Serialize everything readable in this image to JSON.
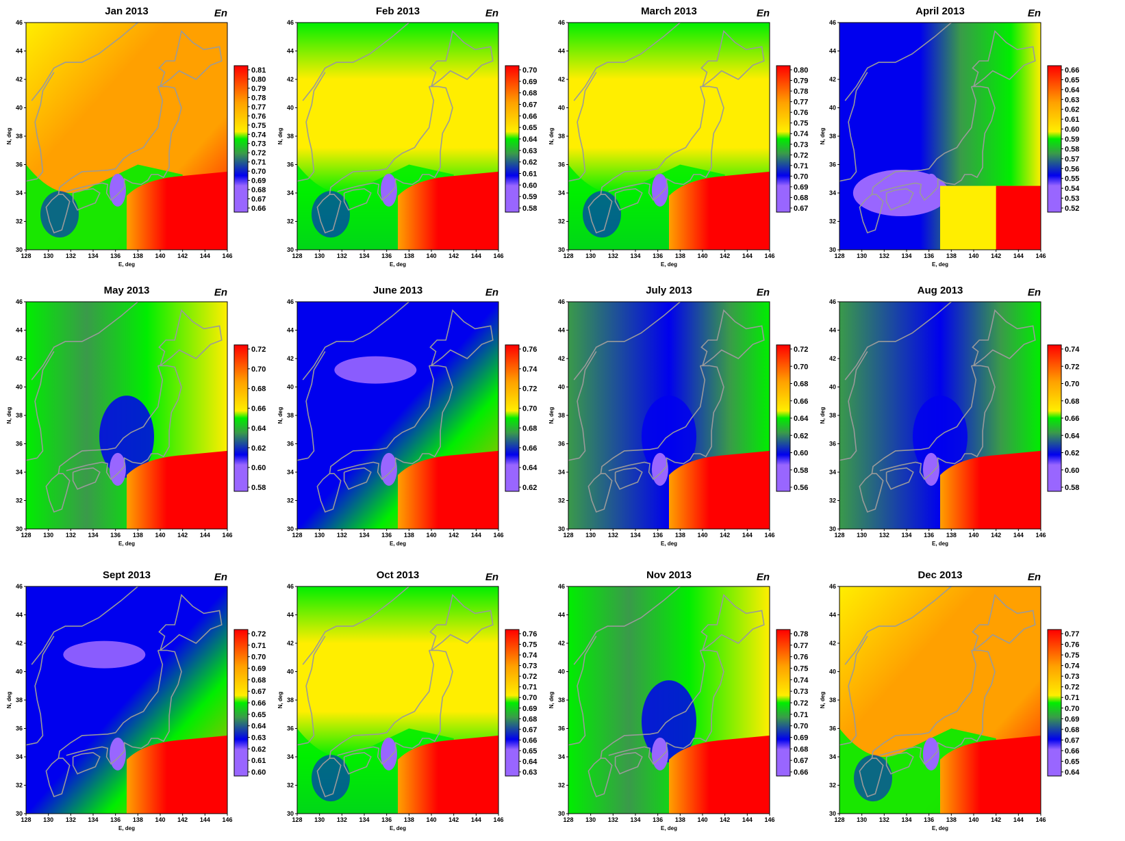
{
  "figure": {
    "panel_tag": "En",
    "colors": {
      "violet": "#9966ff",
      "blue": "#0000ee",
      "darkgreen": "#3a9a4a",
      "green": "#00ee00",
      "yellow": "#ffee00",
      "orange": "#ffa000",
      "red": "#ff0000",
      "coast": "#9a9a9a",
      "mid_gray_green": "#5a8a5a"
    }
  },
  "chart_data": [
    {
      "type": "heatmap",
      "title": "Jan 2013",
      "xlabel": "E, deg",
      "ylabel": "N, deg",
      "xlim": [
        128,
        146
      ],
      "ylim": [
        30,
        46
      ],
      "x_ticks": [
        "128",
        "130",
        "132",
        "134",
        "136",
        "138",
        "140",
        "142",
        "144",
        "146"
      ],
      "y_ticks": [
        "30",
        "32",
        "34",
        "36",
        "38",
        "40",
        "42",
        "44",
        "46"
      ],
      "colorbar_ticks": [
        "0.81",
        "0.80",
        "0.79",
        "0.78",
        "0.77",
        "0.76",
        "0.75",
        "0.74",
        "0.73",
        "0.72",
        "0.71",
        "0.70",
        "0.69",
        "0.68",
        "0.67",
        "0.66"
      ],
      "field": "warm"
    },
    {
      "type": "heatmap",
      "title": "Feb 2013",
      "xlabel": "E, deg",
      "ylabel": "N, deg",
      "xlim": [
        128,
        146
      ],
      "ylim": [
        30,
        46
      ],
      "x_ticks": [
        "128",
        "130",
        "132",
        "134",
        "136",
        "138",
        "140",
        "142",
        "144",
        "146"
      ],
      "y_ticks": [
        "30",
        "32",
        "34",
        "36",
        "38",
        "40",
        "42",
        "44",
        "46"
      ],
      "colorbar_ticks": [
        "0.70",
        "0.69",
        "0.68",
        "0.67",
        "0.66",
        "0.65",
        "0.64",
        "0.63",
        "0.62",
        "0.61",
        "0.60",
        "0.59",
        "0.58"
      ],
      "field": "warmish"
    },
    {
      "type": "heatmap",
      "title": "March 2013",
      "xlabel": "E, deg",
      "ylabel": "N, deg",
      "xlim": [
        128,
        146
      ],
      "ylim": [
        30,
        46
      ],
      "x_ticks": [
        "128",
        "130",
        "132",
        "134",
        "136",
        "138",
        "140",
        "142",
        "144",
        "146"
      ],
      "y_ticks": [
        "30",
        "32",
        "34",
        "36",
        "38",
        "40",
        "42",
        "44",
        "46"
      ],
      "colorbar_ticks": [
        "0.80",
        "0.79",
        "0.78",
        "0.77",
        "0.76",
        "0.75",
        "0.74",
        "0.73",
        "0.72",
        "0.71",
        "0.70",
        "0.69",
        "0.68",
        "0.67"
      ],
      "field": "warmish"
    },
    {
      "type": "heatmap",
      "title": "April 2013",
      "xlabel": "E, deg",
      "ylabel": "N, deg",
      "xlim": [
        128,
        146
      ],
      "ylim": [
        30,
        46
      ],
      "x_ticks": [
        "128",
        "130",
        "132",
        "134",
        "136",
        "138",
        "140",
        "142",
        "144",
        "146"
      ],
      "y_ticks": [
        "30",
        "32",
        "34",
        "36",
        "38",
        "40",
        "42",
        "44",
        "46"
      ],
      "colorbar_ticks": [
        "0.66",
        "0.65",
        "0.64",
        "0.63",
        "0.62",
        "0.61",
        "0.60",
        "0.59",
        "0.58",
        "0.57",
        "0.56",
        "0.55",
        "0.54",
        "0.53",
        "0.52"
      ],
      "field": "cool"
    },
    {
      "type": "heatmap",
      "title": "May 2013",
      "xlabel": "E, deg",
      "ylabel": "N, deg",
      "xlim": [
        128,
        146
      ],
      "ylim": [
        30,
        46
      ],
      "x_ticks": [
        "128",
        "130",
        "132",
        "134",
        "136",
        "138",
        "140",
        "142",
        "144",
        "146"
      ],
      "y_ticks": [
        "30",
        "32",
        "34",
        "36",
        "38",
        "40",
        "42",
        "44",
        "46"
      ],
      "colorbar_ticks": [
        "0.72",
        "0.70",
        "0.68",
        "0.66",
        "0.64",
        "0.62",
        "0.60",
        "0.58"
      ],
      "field": "mixed"
    },
    {
      "type": "heatmap",
      "title": "June 2013",
      "xlabel": "E, deg",
      "ylabel": "N, deg",
      "xlim": [
        128,
        146
      ],
      "ylim": [
        30,
        46
      ],
      "x_ticks": [
        "128",
        "130",
        "132",
        "134",
        "136",
        "138",
        "140",
        "142",
        "144",
        "146"
      ],
      "y_ticks": [
        "30",
        "32",
        "34",
        "36",
        "38",
        "40",
        "42",
        "44",
        "46"
      ],
      "colorbar_ticks": [
        "0.76",
        "0.74",
        "0.72",
        "0.70",
        "0.68",
        "0.66",
        "0.64",
        "0.62"
      ],
      "field": "bluewarm"
    },
    {
      "type": "heatmap",
      "title": "July 2013",
      "xlabel": "E, deg",
      "ylabel": "N, deg",
      "xlim": [
        128,
        146
      ],
      "ylim": [
        30,
        46
      ],
      "x_ticks": [
        "128",
        "130",
        "132",
        "134",
        "136",
        "138",
        "140",
        "142",
        "144",
        "146"
      ],
      "y_ticks": [
        "30",
        "32",
        "34",
        "36",
        "38",
        "40",
        "42",
        "44",
        "46"
      ],
      "colorbar_ticks": [
        "0.72",
        "0.70",
        "0.68",
        "0.66",
        "0.64",
        "0.62",
        "0.60",
        "0.58",
        "0.56"
      ],
      "field": "greenblue"
    },
    {
      "type": "heatmap",
      "title": "Aug 2013",
      "xlabel": "E, deg",
      "ylabel": "N, deg",
      "xlim": [
        128,
        146
      ],
      "ylim": [
        30,
        46
      ],
      "x_ticks": [
        "128",
        "130",
        "132",
        "134",
        "136",
        "138",
        "140",
        "142",
        "144",
        "146"
      ],
      "y_ticks": [
        "30",
        "32",
        "34",
        "36",
        "38",
        "40",
        "42",
        "44",
        "46"
      ],
      "colorbar_ticks": [
        "0.74",
        "0.72",
        "0.70",
        "0.68",
        "0.66",
        "0.64",
        "0.62",
        "0.60",
        "0.58"
      ],
      "field": "greenblue"
    },
    {
      "type": "heatmap",
      "title": "Sept 2013",
      "xlabel": "E, deg",
      "ylabel": "N, deg",
      "xlim": [
        128,
        146
      ],
      "ylim": [
        30,
        46
      ],
      "x_ticks": [
        "128",
        "130",
        "132",
        "134",
        "136",
        "138",
        "140",
        "142",
        "144",
        "146"
      ],
      "y_ticks": [
        "30",
        "32",
        "34",
        "36",
        "38",
        "40",
        "42",
        "44",
        "46"
      ],
      "colorbar_ticks": [
        "0.72",
        "0.71",
        "0.70",
        "0.69",
        "0.68",
        "0.67",
        "0.66",
        "0.65",
        "0.64",
        "0.63",
        "0.62",
        "0.61",
        "0.60"
      ],
      "field": "bluewarm"
    },
    {
      "type": "heatmap",
      "title": "Oct 2013",
      "xlabel": "E, deg",
      "ylabel": "N, deg",
      "xlim": [
        128,
        146
      ],
      "ylim": [
        30,
        46
      ],
      "x_ticks": [
        "128",
        "130",
        "132",
        "134",
        "136",
        "138",
        "140",
        "142",
        "144",
        "146"
      ],
      "y_ticks": [
        "30",
        "32",
        "34",
        "36",
        "38",
        "40",
        "42",
        "44",
        "46"
      ],
      "colorbar_ticks": [
        "0.76",
        "0.75",
        "0.74",
        "0.73",
        "0.72",
        "0.71",
        "0.70",
        "0.69",
        "0.68",
        "0.67",
        "0.66",
        "0.65",
        "0.64",
        "0.63"
      ],
      "field": "warmish"
    },
    {
      "type": "heatmap",
      "title": "Nov 2013",
      "xlabel": "E, deg",
      "ylabel": "N, deg",
      "xlim": [
        128,
        146
      ],
      "ylim": [
        30,
        46
      ],
      "x_ticks": [
        "128",
        "130",
        "132",
        "134",
        "136",
        "138",
        "140",
        "142",
        "144",
        "146"
      ],
      "y_ticks": [
        "30",
        "32",
        "34",
        "36",
        "38",
        "40",
        "42",
        "44",
        "46"
      ],
      "colorbar_ticks": [
        "0.78",
        "0.77",
        "0.76",
        "0.75",
        "0.74",
        "0.73",
        "0.72",
        "0.71",
        "0.70",
        "0.69",
        "0.68",
        "0.67",
        "0.66"
      ],
      "field": "mixed"
    },
    {
      "type": "heatmap",
      "title": "Dec 2013",
      "xlabel": "E, deg",
      "ylabel": "N, deg",
      "xlim": [
        128,
        146
      ],
      "ylim": [
        30,
        46
      ],
      "x_ticks": [
        "128",
        "130",
        "132",
        "134",
        "136",
        "138",
        "140",
        "142",
        "144",
        "146"
      ],
      "y_ticks": [
        "30",
        "32",
        "34",
        "36",
        "38",
        "40",
        "42",
        "44",
        "46"
      ],
      "colorbar_ticks": [
        "0.77",
        "0.76",
        "0.75",
        "0.74",
        "0.73",
        "0.72",
        "0.71",
        "0.70",
        "0.69",
        "0.68",
        "0.67",
        "0.66",
        "0.65",
        "0.64"
      ],
      "field": "warm"
    }
  ]
}
